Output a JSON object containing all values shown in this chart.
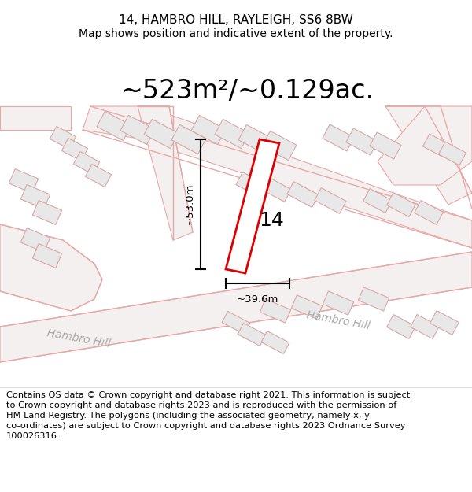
{
  "title": "14, HAMBRO HILL, RAYLEIGH, SS6 8BW",
  "subtitle": "Map shows position and indicative extent of the property.",
  "area_text": "~523m²/~0.129ac.",
  "label_14": "14",
  "dim_vertical": "~53.0m",
  "dim_horizontal": "~39.6m",
  "footer": "Contains OS data © Crown copyright and database right 2021. This information is subject to Crown copyright and database rights 2023 and is reproduced with the permission of HM Land Registry. The polygons (including the associated geometry, namely x, y co-ordinates) are subject to Crown copyright and database rights 2023 Ordnance Survey 100026316.",
  "bg_color": "#ffffff",
  "road_outline_color": "#e8a8a8",
  "building_fill": "#e8e8e8",
  "building_outline": "#d8a8a8",
  "highlight_color": "#dd0000",
  "street_color": "#aaaaaa",
  "title_fontsize": 11,
  "subtitle_fontsize": 10,
  "area_fontsize": 24,
  "footer_fontsize": 8.2,
  "street_name": "Hambro Hill"
}
